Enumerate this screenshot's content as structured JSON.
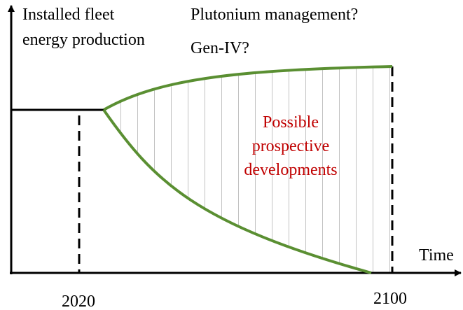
{
  "labels": {
    "y_axis_top": "Installed fleet",
    "y_axis_bottom": "energy production",
    "question_1": "Plutonium management?",
    "question_2": "Gen-IV?",
    "region_line_1": "Possible",
    "region_line_2": "prospective",
    "region_line_3": "developments",
    "x_axis": "Time",
    "year_start": "2020",
    "year_end": "2100"
  }
}
